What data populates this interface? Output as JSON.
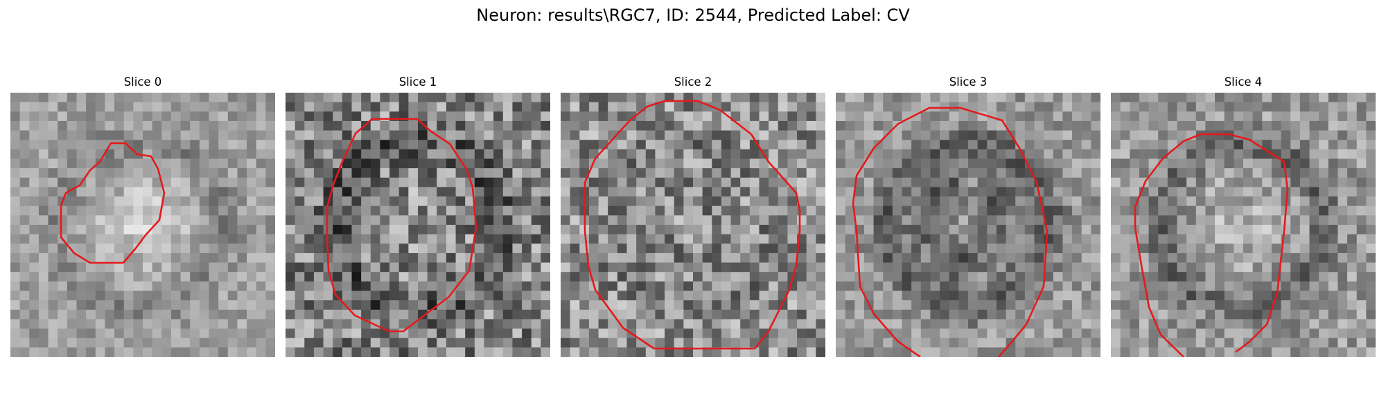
{
  "figure": {
    "title": "Neuron: results\\RGC7, ID: 2544, Predicted Label: CV",
    "contour_color": "#e41a1c",
    "colormap": "gray",
    "panels": [
      {
        "title": "Slice 0",
        "seed": 11,
        "base": 0.62,
        "ring_dark": 0.1,
        "center_bright": 0.18,
        "inner_dark": 0.0,
        "noise": 0.14
      },
      {
        "title": "Slice 1",
        "seed": 23,
        "base": 0.52,
        "ring_dark": 0.18,
        "center_bright": 0.05,
        "inner_dark": 0.0,
        "noise": 0.28
      },
      {
        "title": "Slice 2",
        "seed": 37,
        "base": 0.56,
        "ring_dark": 0.05,
        "center_bright": 0.0,
        "inner_dark": 0.05,
        "noise": 0.26
      },
      {
        "title": "Slice 3",
        "seed": 41,
        "base": 0.6,
        "ring_dark": 0.22,
        "center_bright": 0.0,
        "inner_dark": 0.3,
        "noise": 0.16
      },
      {
        "title": "Slice 4",
        "seed": 53,
        "base": 0.6,
        "ring_dark": 0.2,
        "center_bright": 0.1,
        "inner_dark": 0.0,
        "noise": 0.18
      }
    ]
  }
}
